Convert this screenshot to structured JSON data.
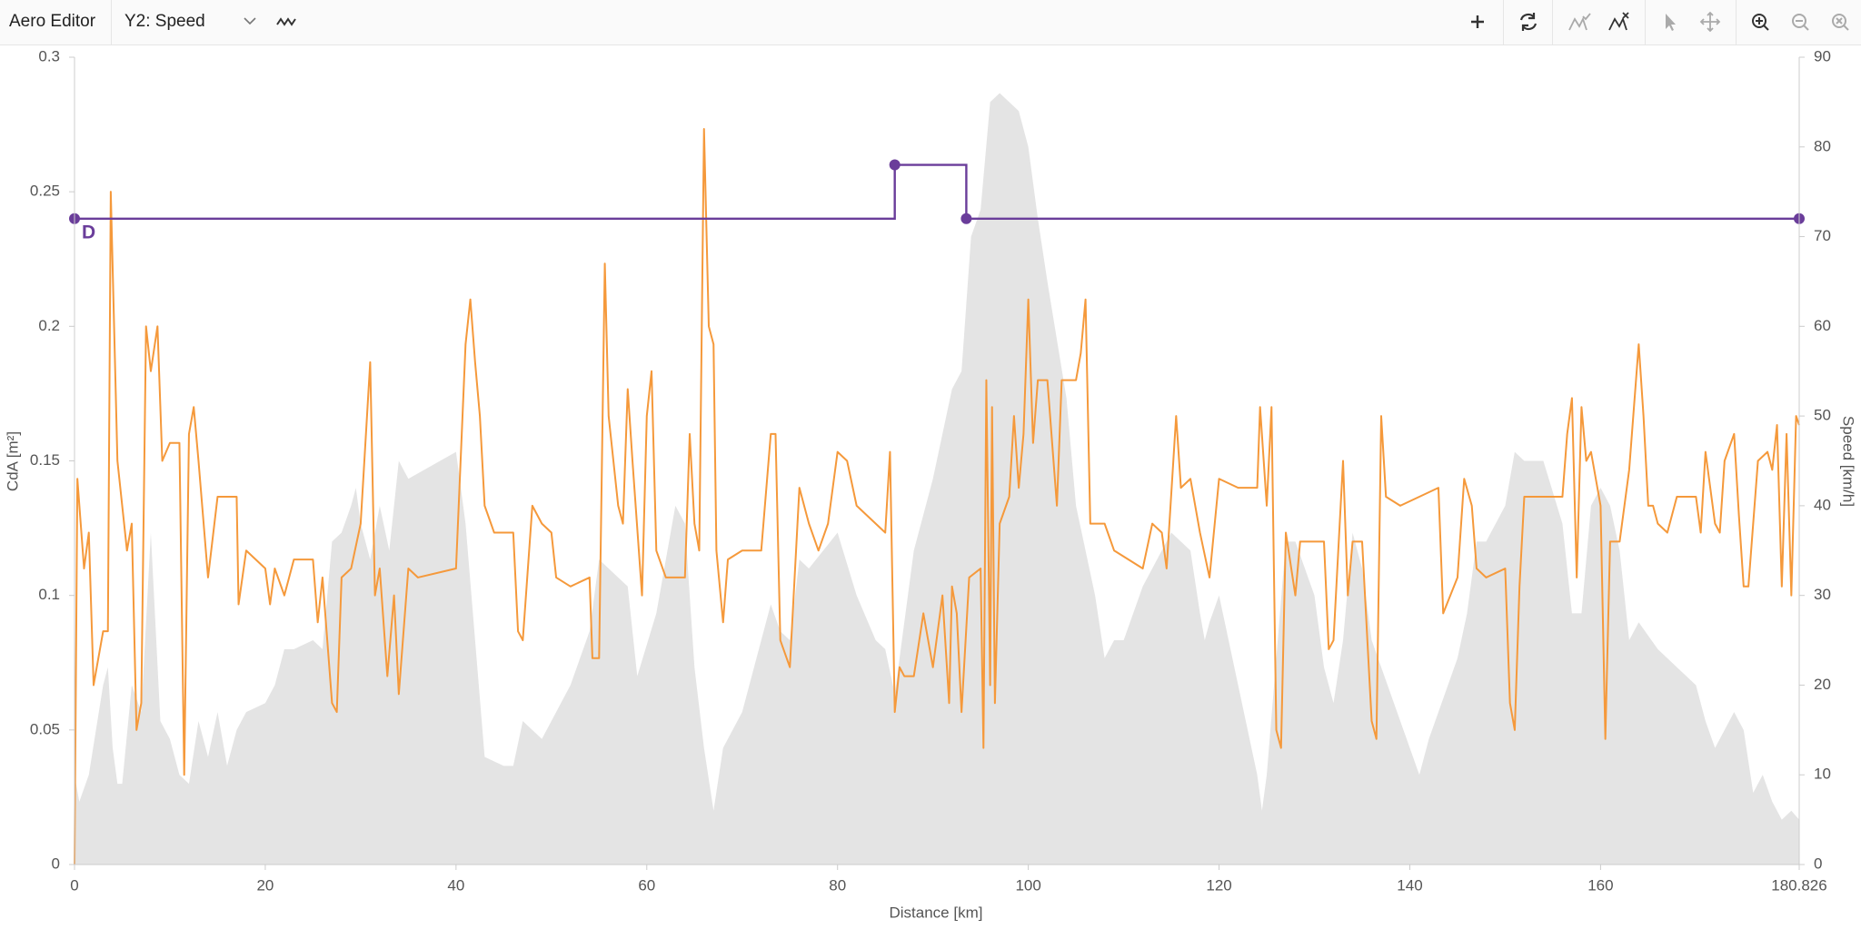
{
  "toolbar": {
    "title": "Aero Editor",
    "selector": "Y2: Speed"
  },
  "chart_data": {
    "type": "line",
    "xlabel": "Distance [km]",
    "ylabel": "CdA [m²]",
    "y2label": "Speed [km/h]",
    "point_label": "D",
    "xlim": [
      0,
      180.826
    ],
    "xticks": [
      0,
      20,
      40,
      60,
      80,
      100,
      120,
      140,
      160,
      180.826
    ],
    "ylim": [
      0,
      0.3
    ],
    "yticks": [
      0,
      0.05,
      0.1,
      0.15,
      0.2,
      0.25,
      0.3
    ],
    "y2lim": [
      0,
      90
    ],
    "y2ticks": [
      0,
      10,
      20,
      30,
      40,
      50,
      60,
      70,
      80,
      90
    ],
    "grid": false,
    "series": [
      {
        "style": "area",
        "axis": "y2",
        "color": "#e4e4e4",
        "x": [
          0,
          0.5,
          1.5,
          3,
          3.5,
          4,
          4.5,
          5,
          6,
          7,
          8,
          9,
          10,
          11,
          12,
          13,
          14,
          15,
          16,
          17,
          18,
          20,
          21,
          22,
          23,
          25,
          26,
          26.5,
          27,
          28,
          29,
          29.5,
          30,
          31,
          32,
          33,
          34,
          35,
          40,
          41,
          43,
          45,
          46,
          47,
          48,
          49,
          50,
          52,
          54,
          55,
          56,
          58,
          59,
          61,
          63,
          64,
          65,
          66,
          67,
          68,
          70,
          73,
          74,
          75,
          76,
          77,
          80,
          82,
          84,
          85,
          86,
          88,
          90,
          92,
          93,
          94,
          95,
          96,
          97,
          98,
          99,
          100,
          101,
          102,
          104,
          105,
          106,
          107,
          108,
          109,
          110,
          112,
          115,
          117,
          118,
          118.5,
          119,
          120,
          123,
          124,
          124.5,
          125,
          126,
          127,
          128,
          130,
          131,
          132,
          133,
          134,
          135,
          136,
          138,
          140,
          141,
          142,
          144,
          145,
          146,
          147,
          148,
          150,
          151,
          152,
          154,
          156,
          157,
          158,
          159,
          160,
          161,
          162,
          163,
          164,
          166,
          168,
          170,
          171,
          172,
          174,
          175,
          176,
          177,
          178,
          179,
          180,
          180.826
        ],
        "values": [
          10,
          7,
          10,
          20,
          22,
          13,
          9,
          9,
          20,
          17,
          37,
          16,
          14,
          10,
          9,
          16,
          12,
          17,
          11,
          15,
          17,
          18,
          20,
          24,
          24,
          25,
          24,
          30,
          36,
          37,
          40,
          42,
          38,
          34,
          40,
          35,
          45,
          43,
          46,
          38,
          12,
          11,
          11,
          16,
          15,
          14,
          16,
          20,
          26,
          34,
          33,
          31,
          21,
          28,
          40,
          38,
          22,
          13,
          6,
          13,
          17,
          29,
          26,
          25,
          34,
          33,
          37,
          30,
          25,
          24,
          19,
          35,
          43,
          53,
          55,
          70,
          73,
          85,
          86,
          85,
          84,
          80,
          72,
          65,
          52,
          40,
          35,
          30,
          23,
          25,
          25,
          31,
          37,
          35,
          28,
          25,
          27,
          30,
          15,
          10,
          6,
          10,
          23,
          36,
          36,
          30,
          22,
          18,
          25,
          37,
          33,
          25,
          19,
          13,
          10,
          14,
          20,
          23,
          28,
          36,
          36,
          40,
          46,
          45,
          45,
          38,
          28,
          28,
          40,
          42,
          40,
          35,
          25,
          27,
          24,
          22,
          20,
          16,
          13,
          17,
          15,
          8,
          10,
          7,
          5,
          6,
          5
        ]
      },
      {
        "style": "line",
        "axis": "y2",
        "color": "#f5993b",
        "x": [
          0,
          0.3,
          1,
          1.5,
          2,
          3,
          3.5,
          3.8,
          4.5,
          5.5,
          6,
          6.5,
          7,
          7.5,
          8,
          8.7,
          9.2,
          10,
          11,
          11.5,
          12,
          12.5,
          13,
          14,
          15,
          17,
          17.2,
          18,
          19,
          20,
          20.5,
          21,
          22,
          23,
          25,
          25.5,
          26,
          27,
          27.5,
          28,
          29,
          30,
          31,
          31.5,
          32,
          32.8,
          33.5,
          34,
          35,
          36,
          40,
          41,
          41.5,
          42,
          42.5,
          43,
          44,
          46,
          46.5,
          47,
          48,
          49,
          50,
          50.5,
          52,
          54,
          54.3,
          55,
          55.6,
          56,
          57,
          57.5,
          58,
          58.5,
          59.5,
          60,
          60.5,
          61,
          62,
          64,
          64.5,
          65,
          65.5,
          66,
          66.5,
          67,
          67.3,
          68,
          68.5,
          70,
          72,
          73,
          73.5,
          74,
          75,
          76,
          77,
          78,
          79,
          80,
          81,
          82,
          84,
          85,
          85.5,
          86,
          86.5,
          87,
          88,
          89,
          90,
          91,
          91.7,
          92,
          92.5,
          93,
          93.8,
          95,
          95.3,
          95.6,
          96,
          96.2,
          96.5,
          97,
          98,
          98.5,
          99,
          99.5,
          100,
          100.5,
          101,
          102,
          103,
          103.5,
          105,
          105.5,
          106,
          106.5,
          107,
          108,
          109,
          112,
          113,
          114,
          114.5,
          115.5,
          116,
          117,
          118,
          119,
          120,
          122,
          124,
          124.3,
          125,
          125.5,
          126,
          126.5,
          127,
          128,
          128.5,
          130,
          131,
          131.5,
          132,
          133,
          133.5,
          134,
          135,
          136,
          136.5,
          137,
          137.5,
          139,
          141,
          143,
          143.5,
          145,
          145.7,
          146.5,
          147,
          148,
          150,
          150.5,
          151,
          151.5,
          152,
          156,
          156.5,
          157,
          157.5,
          158,
          158.5,
          159,
          160,
          160.5,
          161,
          162,
          163,
          164,
          164.5,
          165,
          165.5,
          166,
          167,
          168,
          170,
          170.5,
          171,
          172,
          172.5,
          173,
          174,
          174.5,
          175,
          175.5,
          176.5,
          177.5,
          178,
          178.5,
          179,
          179.5,
          180,
          180.5,
          180.826
        ],
        "values": [
          0,
          43,
          33,
          37,
          20,
          26,
          26,
          75,
          45,
          35,
          38,
          15,
          18,
          60,
          55,
          60,
          45,
          47,
          47,
          10,
          48,
          51,
          45,
          32,
          41,
          41,
          29,
          35,
          34,
          33,
          29,
          33,
          30,
          34,
          34,
          27,
          32,
          18,
          17,
          32,
          33,
          38,
          56,
          30,
          33,
          21,
          30,
          19,
          33,
          32,
          33,
          58,
          63,
          56,
          50,
          40,
          37,
          37,
          26,
          25,
          40,
          38,
          37,
          32,
          31,
          32,
          23,
          23,
          67,
          50,
          40,
          38,
          53,
          45,
          30,
          50,
          55,
          35,
          32,
          32,
          48,
          38,
          35,
          82,
          60,
          58,
          35,
          27,
          34,
          35,
          35,
          48,
          48,
          25,
          22,
          42,
          38,
          35,
          38,
          46,
          45,
          40,
          38,
          37,
          46,
          17,
          22,
          21,
          21,
          28,
          22,
          30,
          18,
          31,
          28,
          17,
          32,
          33,
          13,
          54,
          20,
          51,
          18,
          38,
          41,
          50,
          42,
          48,
          63,
          47,
          54,
          54,
          40,
          54,
          54,
          57,
          63,
          38,
          38,
          38,
          35,
          33,
          38,
          37,
          33,
          50,
          42,
          43,
          37,
          32,
          43,
          42,
          42,
          51,
          40,
          51,
          15,
          13,
          37,
          30,
          36,
          36,
          36,
          24,
          25,
          45,
          30,
          36,
          36,
          16,
          14,
          50,
          41,
          40,
          41,
          42,
          28,
          32,
          43,
          40,
          33,
          32,
          33,
          18,
          15,
          31,
          41,
          41,
          48,
          52,
          32,
          51,
          45,
          46,
          40,
          14,
          36,
          36,
          44,
          58,
          50,
          40,
          40,
          38,
          37,
          41,
          41,
          37,
          46,
          38,
          37,
          45,
          48,
          39,
          31,
          31,
          45,
          46,
          44,
          49,
          31,
          48,
          30,
          50,
          49
        ]
      },
      {
        "style": "step",
        "axis": "y",
        "color": "#6a3d9a",
        "x": [
          0,
          86,
          93.5,
          180.826
        ],
        "values": [
          0.24,
          0.26,
          0.24,
          0.24
        ]
      }
    ]
  }
}
